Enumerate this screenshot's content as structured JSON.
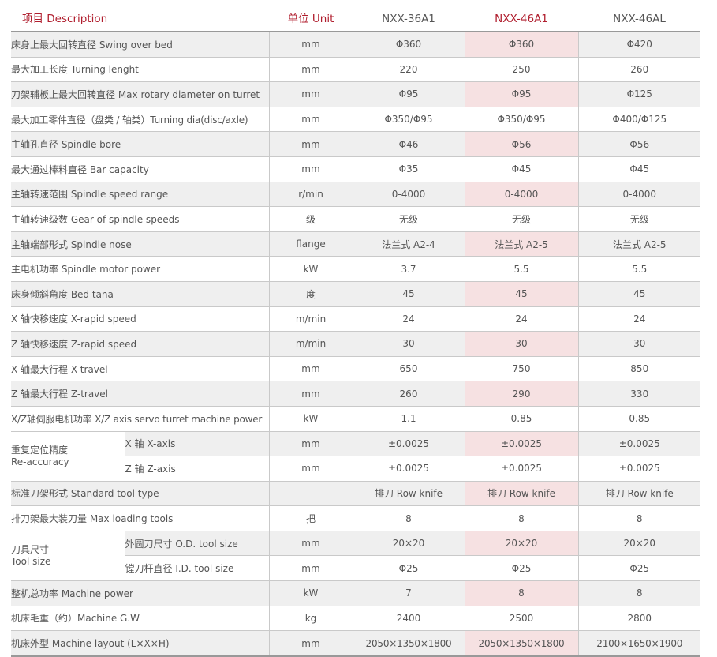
{
  "header": {
    "item": "项目 Description",
    "unit": "单位 Unit",
    "model_1": "NXX-36A1",
    "model_2": "NXX-46A1",
    "model_3": "NXX-46AL"
  },
  "rows": [
    {
      "name": "床身上最大回转直径 Swing over bed",
      "unit": "mm",
      "v1": "Φ360",
      "v2": "Φ360",
      "v3": "Φ420"
    },
    {
      "name": "最大加工长度 Turning lenght",
      "unit": "mm",
      "v1": "220",
      "v2": "250",
      "v3": "260"
    },
    {
      "name": "刀架辅板上最大回转直径 Max rotary  diameter on turret",
      "unit": "mm",
      "v1": "Φ95",
      "v2": "Φ95",
      "v3": "Φ125"
    },
    {
      "name": "最大加工零件直径（盘类 / 轴类）Turning dia(disc/axle)",
      "unit": "mm",
      "v1": "Φ350/Φ95",
      "v2": "Φ350/Φ95",
      "v3": "Φ400/Φ125"
    },
    {
      "name": "主轴孔直径 Spindle bore",
      "unit": "mm",
      "v1": "Φ46",
      "v2": "Φ56",
      "v3": "Φ56"
    },
    {
      "name": "最大通过棒料直径 Bar capacity",
      "unit": "mm",
      "v1": "Φ35",
      "v2": "Φ45",
      "v3": "Φ45"
    },
    {
      "name": "主轴转速范围 Spindle speed range",
      "unit": "r/min",
      "v1": "0-4000",
      "v2": "0-4000",
      "v3": "0-4000"
    },
    {
      "name": "主轴转速级数 Gear of spindle speeds",
      "unit": "级",
      "v1": "无级",
      "v2": "无级",
      "v3": "无级"
    },
    {
      "name": "主轴端部形式 Spindle nose",
      "unit": "flange",
      "v1": "法兰式 A2-4",
      "v2": "法兰式 A2-5",
      "v3": "法兰式 A2-5"
    },
    {
      "name": "主电机功率 Spindle motor power",
      "unit": "kW",
      "v1": "3.7",
      "v2": "5.5",
      "v3": "5.5"
    },
    {
      "name": "床身倾斜角度 Bed tana",
      "unit": "度",
      "v1": "45",
      "v2": "45",
      "v3": "45"
    },
    {
      "name": "X 轴快移速度 X-rapid speed",
      "unit": "m/min",
      "v1": "24",
      "v2": "24",
      "v3": "24"
    },
    {
      "name": "Z 轴快移速度 Z-rapid speed",
      "unit": "m/min",
      "v1": "30",
      "v2": "30",
      "v3": "30"
    },
    {
      "name": "X 轴最大行程 X-travel",
      "unit": "mm",
      "v1": "650",
      "v2": "750",
      "v3": "850"
    },
    {
      "name": "Z 轴最大行程 Z-travel",
      "unit": "mm",
      "v1": "260",
      "v2": "290",
      "v3": "330"
    },
    {
      "name": "X/Z轴伺服电机功率 X/Z axis servo turret machine power",
      "unit": "kW",
      "v1": "1.1",
      "v2": "0.85",
      "v3": "0.85"
    },
    {
      "group": "重复定位精度",
      "group_en": "Re-accuracy",
      "sub": "X 轴 X-axis",
      "unit": "mm",
      "v1": "±0.0025",
      "v2": "±0.0025",
      "v3": "±0.0025"
    },
    {
      "sub": "Z 轴 Z-axis",
      "unit": "mm",
      "v1": "±0.0025",
      "v2": "±0.0025",
      "v3": "±0.0025"
    },
    {
      "name": "标准刀架形式 Standard tool type",
      "unit": "-",
      "v1": "排刀 Row knife",
      "v2": "排刀 Row knife",
      "v3": "排刀 Row knife"
    },
    {
      "name": "排刀架最大装刀量 Max loading tools",
      "unit": "把",
      "v1": "8",
      "v2": "8",
      "v3": "8"
    },
    {
      "group": "刀具尺寸",
      "group_en": "Tool size",
      "sub": "外圆刀尺寸 O.D. tool size",
      "unit": "mm",
      "v1": "20×20",
      "v2": "20×20",
      "v3": "20×20"
    },
    {
      "sub": "镗刀杆直径 I.D. tool size",
      "unit": "mm",
      "v1": "Φ25",
      "v2": "Φ25",
      "v3": "Φ25"
    },
    {
      "name": "整机总功率 Machine power",
      "unit": "kW",
      "v1": "7",
      "v2": "8",
      "v3": "8"
    },
    {
      "name": "机床毛重（约）Machine G.W",
      "unit": "kg",
      "v1": "2400",
      "v2": "2500",
      "v3": "2800"
    },
    {
      "name": "机床外型 Machine layout (L×X×H)",
      "unit": "mm",
      "v1": "2050×1350×1800",
      "v2": "2050×1350×1800",
      "v3": "2100×1650×1900"
    }
  ],
  "colors": {
    "accent": "#b01e2e",
    "highlight_fill": "#f6e1e2",
    "zebra": "#efefef",
    "rule": "#c9c9c9"
  }
}
